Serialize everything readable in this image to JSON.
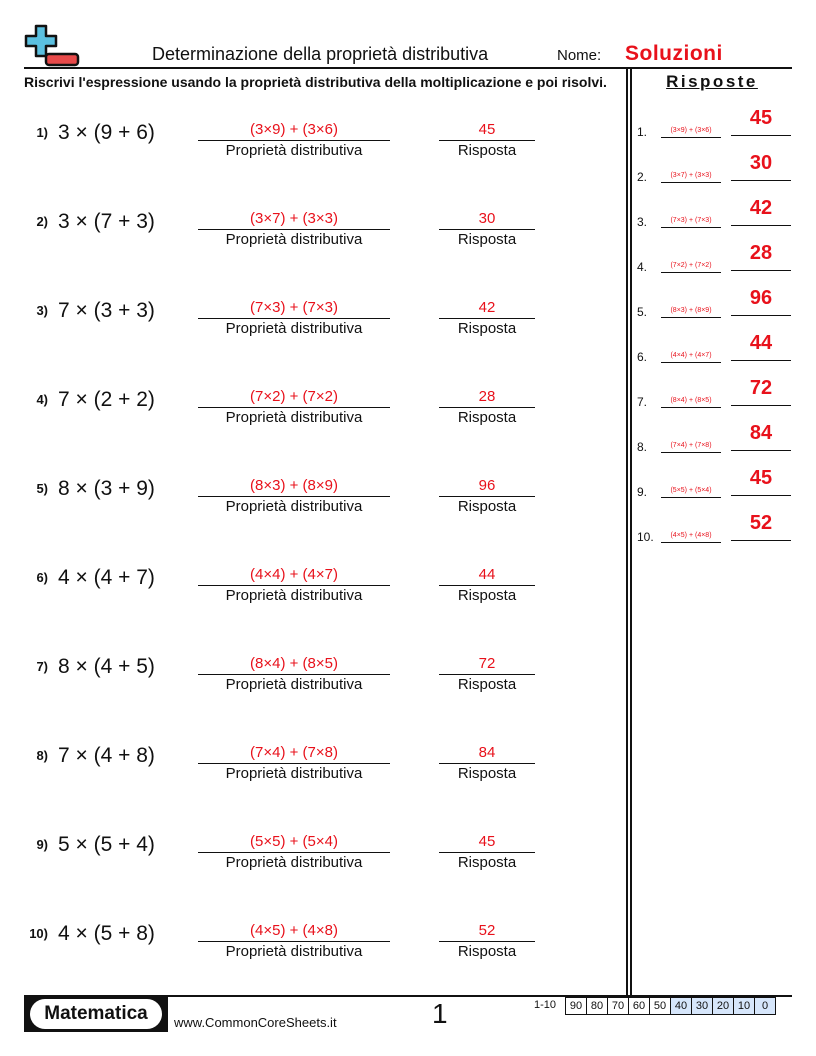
{
  "header": {
    "title": "Determinazione della proprietà distributiva",
    "name_label": "Nome:",
    "name_value": "Soluzioni",
    "instructions": "Riscrivi l'espressione usando la proprietà distributiva della moltiplicazione e poi risolvi."
  },
  "labels": {
    "distributive": "Proprietà distributiva",
    "answer": "Risposta"
  },
  "problems": [
    {
      "num": "1)",
      "expr": "3 × (9 + 6)",
      "dist": "(3×9) + (3×6)",
      "answer": "45"
    },
    {
      "num": "2)",
      "expr": "3 × (7 + 3)",
      "dist": "(3×7) + (3×3)",
      "answer": "30"
    },
    {
      "num": "3)",
      "expr": "7 × (3 + 3)",
      "dist": "(7×3) + (7×3)",
      "answer": "42"
    },
    {
      "num": "4)",
      "expr": "7 × (2 + 2)",
      "dist": "(7×2) + (7×2)",
      "answer": "28"
    },
    {
      "num": "5)",
      "expr": "8 × (3 + 9)",
      "dist": "(8×3) + (8×9)",
      "answer": "96"
    },
    {
      "num": "6)",
      "expr": "4 × (4 + 7)",
      "dist": "(4×4) + (4×7)",
      "answer": "44"
    },
    {
      "num": "7)",
      "expr": "8 × (4 + 5)",
      "dist": "(8×4) + (8×5)",
      "answer": "72"
    },
    {
      "num": "8)",
      "expr": "7 × (4 + 8)",
      "dist": "(7×4) + (7×8)",
      "answer": "84"
    },
    {
      "num": "9)",
      "expr": "5 × (5 + 4)",
      "dist": "(5×5) + (5×4)",
      "answer": "45"
    },
    {
      "num": "10)",
      "expr": "4 × (5 + 8)",
      "dist": "(4×5) + (4×8)",
      "answer": "52"
    }
  ],
  "answer_key": {
    "title": "Risposte",
    "items": [
      {
        "num": "1.",
        "dist": "(3×9) + (3×6)",
        "answer": "45"
      },
      {
        "num": "2.",
        "dist": "(3×7) + (3×3)",
        "answer": "30"
      },
      {
        "num": "3.",
        "dist": "(7×3) + (7×3)",
        "answer": "42"
      },
      {
        "num": "4.",
        "dist": "(7×2) + (7×2)",
        "answer": "28"
      },
      {
        "num": "5.",
        "dist": "(8×3) + (8×9)",
        "answer": "96"
      },
      {
        "num": "6.",
        "dist": "(4×4) + (4×7)",
        "answer": "44"
      },
      {
        "num": "7.",
        "dist": "(8×4) + (8×5)",
        "answer": "72"
      },
      {
        "num": "8.",
        "dist": "(7×4) + (7×8)",
        "answer": "84"
      },
      {
        "num": "9.",
        "dist": "(5×5) + (5×4)",
        "answer": "45"
      },
      {
        "num": "10.",
        "dist": "(4×5) + (4×8)",
        "answer": "52"
      }
    ]
  },
  "footer": {
    "brand": "Matematica",
    "website": "www.CommonCoreSheets.it",
    "page": "1",
    "score_label": "1-10",
    "scores": [
      "90",
      "80",
      "70",
      "60",
      "50",
      "40",
      "30",
      "20",
      "10",
      "0"
    ],
    "highlighted_scores_from_index": 5
  },
  "colors": {
    "accent_red": "#e8111b",
    "logo_blue": "#5bc0e0",
    "score_blue": "#d6e6fb"
  }
}
